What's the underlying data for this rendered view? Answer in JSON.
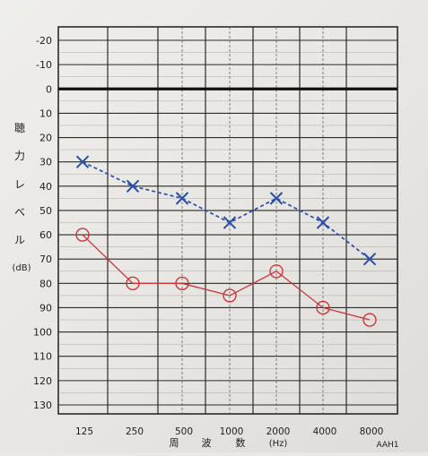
{
  "chart_data": {
    "type": "line",
    "title": "",
    "ylabel_chars": [
      "聴",
      "力",
      "レ",
      "ベ",
      "ル"
    ],
    "ylabel_unit": "(dB)",
    "xlabel_chars": [
      "周",
      "波",
      "数"
    ],
    "xlabel_unit": "(Hz)",
    "corner_code": "AAH1",
    "x_categories": [
      "125",
      "250",
      "500",
      "1000",
      "2000",
      "4000",
      "8000"
    ],
    "y_ticks": [
      "-20",
      "-10",
      "0",
      "10",
      "20",
      "30",
      "40",
      "50",
      "60",
      "70",
      "80",
      "90",
      "100",
      "110",
      "120",
      "130"
    ],
    "ylim": [
      -20,
      130
    ],
    "y_inverted": true,
    "grid": true,
    "series": [
      {
        "marker": "x",
        "line_style": "dashed",
        "color": "#2a4fa8",
        "values": [
          30,
          40,
          45,
          55,
          45,
          55,
          70
        ]
      },
      {
        "marker": "o",
        "line_style": "solid",
        "color": "#c8383c",
        "values": [
          60,
          80,
          80,
          85,
          75,
          90,
          95
        ]
      }
    ]
  }
}
